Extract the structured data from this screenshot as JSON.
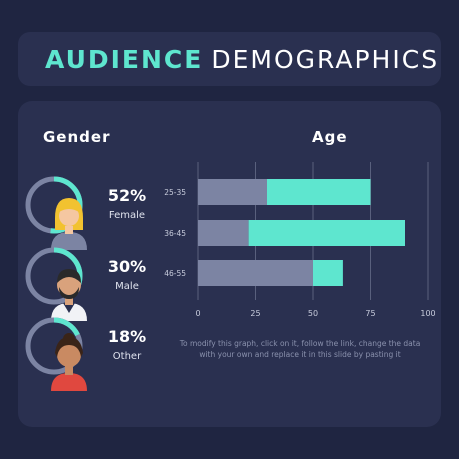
{
  "title": {
    "accent": "AUDIENCE",
    "rest": "DEMOGRAPHICS"
  },
  "gender": {
    "heading": "Gender",
    "items": [
      {
        "pct": "52%",
        "label": "Female",
        "value": 52,
        "icon": "woman-avatar-icon"
      },
      {
        "pct": "30%",
        "label": "Male",
        "value": 30,
        "icon": "man-avatar-icon"
      },
      {
        "pct": "18%",
        "label": "Other",
        "value": 18,
        "icon": "person-avatar-icon"
      }
    ]
  },
  "colors": {
    "accent": "#5ee6cf",
    "muted": "#7c84a3",
    "card": "#2a3050",
    "background": "#1f2541"
  },
  "chart_data": {
    "type": "bar",
    "orientation": "horizontal",
    "stacked": true,
    "title": "Age",
    "categories": [
      "25-35",
      "36-45",
      "46-55"
    ],
    "series": [
      {
        "values": [
          30,
          22,
          50
        ],
        "color": "#7c84a3"
      },
      {
        "values": [
          45,
          68,
          13
        ],
        "color": "#5ee6cf"
      }
    ],
    "xlim": [
      0,
      100
    ],
    "xticks": [
      0,
      25,
      50,
      75,
      100
    ],
    "grid": true
  },
  "note": "To modify this graph, click on it, follow the link, change the data with your own and replace it in this slide by pasting it"
}
